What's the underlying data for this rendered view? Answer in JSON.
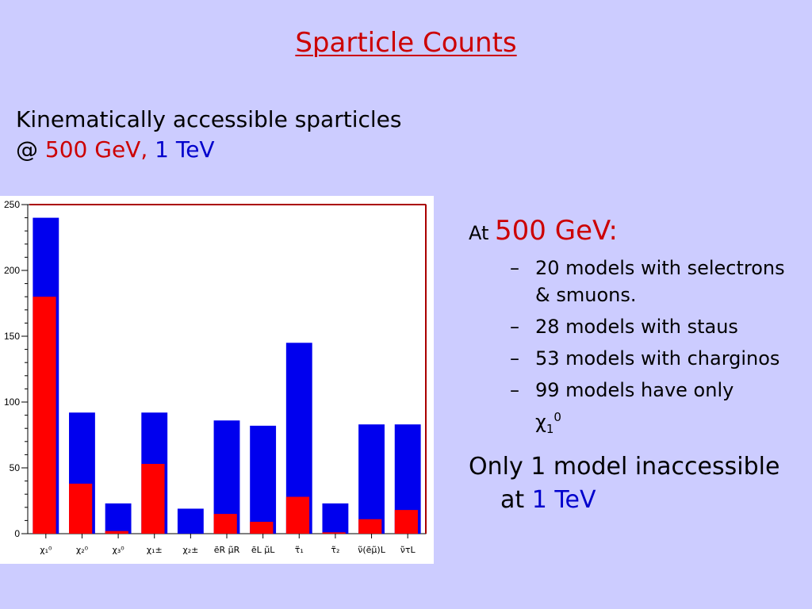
{
  "slide": {
    "title": "Sparticle Counts",
    "subtitle_line1": "Kinematically accessible sparticles",
    "subtitle_at": "@",
    "subtitle_500": "500 GeV,",
    "subtitle_1tev": "1 TeV",
    "colors": {
      "red": "#cc0000",
      "blue": "#0000cc",
      "background": "#ccccff"
    }
  },
  "right": {
    "at_label": "At",
    "at_value": "500 GeV:",
    "bullets": [
      "20 models with selectrons & smuons.",
      "28 models with staus",
      "53 models with charginos",
      "99 models have only"
    ],
    "chi_symbol": "χ",
    "chi_sub": "1",
    "chi_sup": "0",
    "dash": "–",
    "only_text": "Only 1 model inaccessible at",
    "only_value": "1 TeV"
  },
  "chart_data": {
    "type": "bar",
    "categories": [
      "χ₁⁰",
      "χ₂⁰",
      "χ₃⁰",
      "χ₁±",
      "χ₂±",
      "ẽR μ̃R",
      "ẽL μ̃L",
      "τ̃₁",
      "τ̃₂",
      "ν̃(ẽμ̃)L",
      "ν̃τL"
    ],
    "series": [
      {
        "color": "#0000ee",
        "values": [
          240,
          92,
          23,
          92,
          19,
          86,
          82,
          145,
          23,
          83,
          83
        ]
      },
      {
        "color": "#ff0000",
        "values": [
          180,
          38,
          2,
          53,
          0,
          15,
          9,
          28,
          1,
          11,
          18
        ]
      }
    ],
    "ylim": [
      0,
      250
    ],
    "yticks": [
      0,
      50,
      100,
      150,
      200,
      250
    ],
    "overlaid": true
  }
}
